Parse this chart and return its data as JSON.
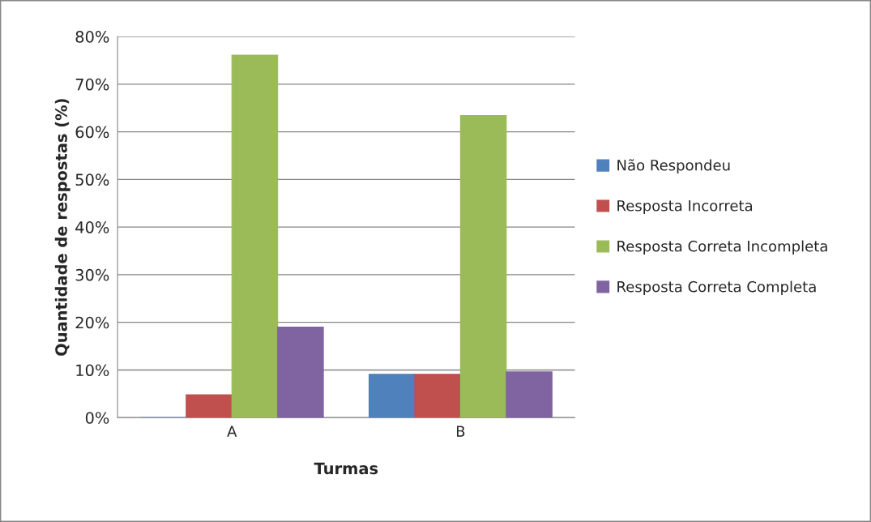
{
  "chart_data": {
    "type": "bar",
    "xlabel": "Turmas",
    "ylabel": "Quantidade de respostas (%)",
    "categories": [
      "A",
      "B"
    ],
    "series": [
      {
        "name": "Não Respondeu",
        "color": "#4f81bd",
        "values": [
          0,
          9.1
        ]
      },
      {
        "name": "Resposta Incorreta",
        "color": "#c0504d",
        "values": [
          4.8,
          9.1
        ]
      },
      {
        "name": "Resposta Correta Incompleta",
        "color": "#9bbb59",
        "values": [
          76.1,
          63.4
        ]
      },
      {
        "name": "Resposta Correta Completa",
        "color": "#8064a2",
        "values": [
          19.0,
          9.6
        ]
      }
    ],
    "ylim": [
      0,
      80
    ],
    "yticks": [
      {
        "value": 0,
        "label": "0%"
      },
      {
        "value": 10,
        "label": "10%"
      },
      {
        "value": 20,
        "label": "20%"
      },
      {
        "value": 30,
        "label": "30%"
      },
      {
        "value": 40,
        "label": "40%"
      },
      {
        "value": 50,
        "label": "50%"
      },
      {
        "value": 60,
        "label": "60%"
      },
      {
        "value": 70,
        "label": "70%"
      },
      {
        "value": 80,
        "label": "80%"
      }
    ],
    "grid": "y",
    "legend": "right"
  }
}
